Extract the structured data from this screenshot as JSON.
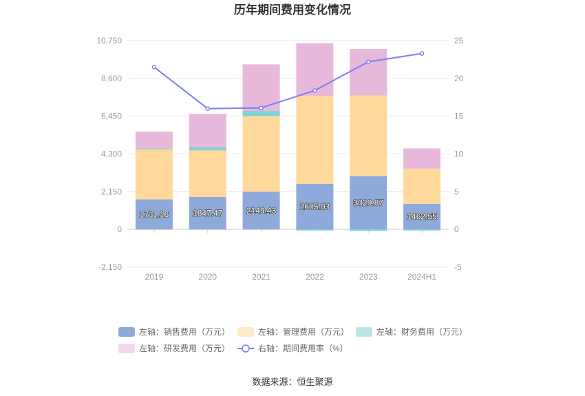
{
  "chart_data": {
    "type": "bar",
    "title": "历年期间费用变化情况",
    "categories": [
      "2019",
      "2020",
      "2021",
      "2022",
      "2023",
      "2024H1"
    ],
    "left_axis": {
      "ticks": [
        -2150,
        0,
        2150,
        4300,
        6450,
        8600,
        10750
      ],
      "tick_labels": [
        "-2,150",
        "0",
        "2,150",
        "4,300",
        "6,450",
        "8,600",
        "10,750"
      ],
      "ylim": [
        -2150,
        10750
      ]
    },
    "right_axis": {
      "ticks": [
        -5,
        0,
        5,
        10,
        15,
        20,
        25
      ],
      "tick_labels": [
        "-5",
        "0",
        "5",
        "10",
        "15",
        "20",
        "25"
      ],
      "ylim": [
        -5,
        25
      ]
    },
    "series": [
      {
        "name": "左轴：销售费用（万元）",
        "color": "#8eaadb",
        "axis": "left",
        "kind": "bar",
        "values": [
          1711.16,
          1847.47,
          2149.43,
          2605.03,
          3029.87,
          1462.55
        ],
        "labels": [
          "1711.16",
          "1847.47",
          "2149.43",
          "2605.03",
          "3029.87",
          "1462.55"
        ]
      },
      {
        "name": "左轴：管理费用（万元）",
        "color": "#ffd99b",
        "axis": "left",
        "kind": "bar",
        "values": [
          2900,
          2650,
          4300,
          5000,
          4600,
          2000
        ]
      },
      {
        "name": "左轴：财务费用（万元）",
        "color": "#7fd3d6",
        "axis": "left",
        "kind": "bar",
        "values": [
          10,
          180,
          300,
          -50,
          -80,
          -20
        ]
      },
      {
        "name": "左轴：研发费用（万元）",
        "color": "#e8b8da",
        "axis": "left",
        "kind": "bar",
        "values": [
          950,
          1900,
          2650,
          3000,
          2650,
          1150
        ]
      },
      {
        "name": "右轴：期间费用率（%）",
        "color": "#7b7ff0",
        "axis": "right",
        "kind": "line",
        "values": [
          21.5,
          16.0,
          16.1,
          18.4,
          22.2,
          23.3
        ]
      }
    ],
    "legend_position": "bottom"
  },
  "source_text": "数据来源：恒生聚源"
}
